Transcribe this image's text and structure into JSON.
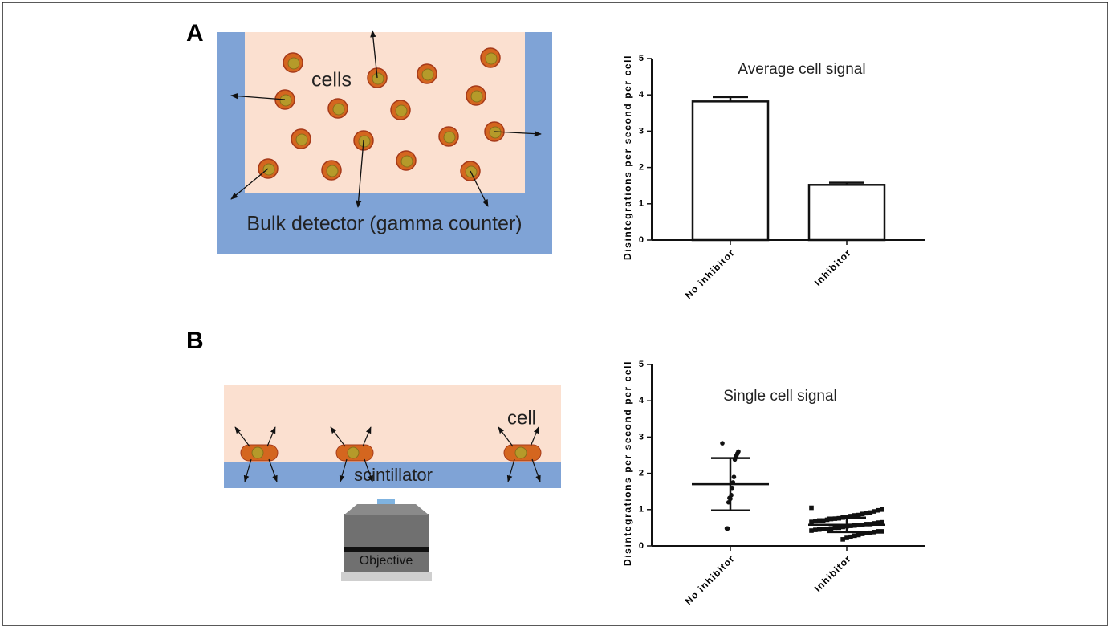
{
  "panels": [
    "A",
    "B"
  ],
  "diagram_a": {
    "cells_label": "cells",
    "detector_label": "Bulk detector (gamma counter)"
  },
  "diagram_b": {
    "cell_label": "cell",
    "scintillator_label": "scintillator",
    "objective_label": "Objective"
  },
  "chart_data": [
    {
      "type": "bar",
      "title": "Average cell signal",
      "ylabel": "Disintegrations per second per cell",
      "categories": [
        "No inhibitor",
        "Inhibitor"
      ],
      "values": [
        3.82,
        1.52
      ],
      "errors": [
        0.12,
        0.06
      ],
      "color": "#ffffff",
      "ylim": [
        0,
        5
      ],
      "yticks": [
        0,
        1,
        2,
        3,
        4,
        5
      ]
    },
    {
      "type": "scatter",
      "title": "Single cell signal",
      "ylabel": "Disintegrations per second per cell",
      "categories": [
        "No inhibitor",
        "Inhibitor"
      ],
      "series": [
        {
          "name": "No inhibitor",
          "color": "#111111",
          "values": [
            2.83,
            2.6,
            2.55,
            2.5,
            2.45,
            2.38,
            1.9,
            1.75,
            1.6,
            1.4,
            1.3,
            1.32,
            1.2,
            0.48,
            0.48
          ]
        },
        {
          "name": "Inhibitor",
          "color": "#111111",
          "values": [
            1.05,
            1.0,
            0.98,
            0.95,
            0.92,
            0.9,
            0.88,
            0.85,
            0.84,
            0.82,
            0.8,
            0.78,
            0.76,
            0.75,
            0.74,
            0.72,
            0.7,
            0.7,
            0.68,
            0.66,
            0.65,
            0.64,
            0.62,
            0.6,
            0.6,
            0.58,
            0.57,
            0.56,
            0.55,
            0.54,
            0.52,
            0.5,
            0.5,
            0.48,
            0.47,
            0.46,
            0.45,
            0.44,
            0.42,
            0.4,
            0.4,
            0.38,
            0.36,
            0.35,
            0.33,
            0.3,
            0.28,
            0.25,
            0.22,
            0.18
          ]
        }
      ],
      "means": [
        1.7,
        0.58
      ],
      "sds": [
        0.72,
        0.2
      ],
      "ylim": [
        0,
        5
      ],
      "yticks": [
        0,
        1,
        2,
        3,
        4,
        5
      ]
    }
  ]
}
